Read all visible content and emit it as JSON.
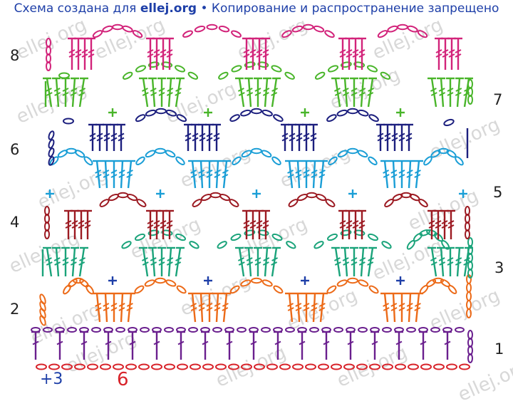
{
  "header": {
    "prefix": "Схема создана для ",
    "site": "ellej.org",
    "suffix": " • Копирование и распространение запрещено"
  },
  "watermark": "ellej.org",
  "row_numbers": [
    "1",
    "2",
    "3",
    "4",
    "5",
    "6",
    "7",
    "8"
  ],
  "foundation": {
    "plus": "+3",
    "count": "6"
  },
  "colors": {
    "row1": "#6a1f8e",
    "row2": "#ec6a18",
    "row3": "#1aa37a",
    "row4": "#9c1a22",
    "row5": "#1a9ed6",
    "row6": "#1c1f7e",
    "row7": "#49b52a",
    "row8": "#d2237a",
    "foundation": "#d8232a",
    "plus": "#1e3fa8"
  }
}
